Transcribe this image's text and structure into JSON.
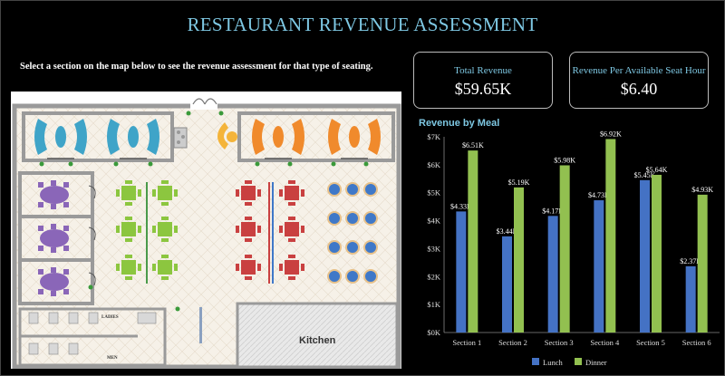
{
  "title": "RESTAURANT REVENUE ASSESSMENT",
  "instruction": "Select a section on the map below to see the revenue assessment for that type of seating.",
  "kpis": {
    "total_revenue": {
      "label": "Total Revenue",
      "value": "$59.65K"
    },
    "revpash": {
      "label": "Revenue Per Available Seat Hour",
      "value": "$6.40"
    }
  },
  "map": {
    "labels": {
      "ladies": "LADIES",
      "men": "MEN",
      "kitchen": "Kitchen"
    },
    "colors": {
      "booth_blue": "#3fa4c8",
      "booth_orange": "#f08a2c",
      "private_purple": "#8a66b8",
      "table_green": "#8cc63f",
      "table_red": "#c94040",
      "round_blue": "#3f78c8",
      "floor": "#f4efe6",
      "wall": "#9a9a9a"
    }
  },
  "chart_data": {
    "type": "bar",
    "title": "Revenue by Meal",
    "categories": [
      "Section 1",
      "Section 2",
      "Section 3",
      "Section 4",
      "Section 5",
      "Section 6"
    ],
    "series": [
      {
        "name": "Lunch",
        "color": "#4472c4",
        "values": [
          4.33,
          3.44,
          4.17,
          4.73,
          5.45,
          2.37
        ],
        "labels": [
          "$4.33K",
          "$3.44K",
          "$4.17K",
          "$4.73K",
          "$5.45K",
          "$2.37K"
        ]
      },
      {
        "name": "Dinner",
        "color": "#92c050",
        "values": [
          6.51,
          5.19,
          5.98,
          6.92,
          5.64,
          4.93
        ],
        "labels": [
          "$6.51K",
          "$5.19K",
          "$5.98K",
          "$6.92K",
          "$5.64K",
          "$4.93K"
        ]
      }
    ],
    "yticks": [
      "$0K",
      "$1K",
      "$2K",
      "$3K",
      "$4K",
      "$5K",
      "$6K",
      "$7K"
    ],
    "ylim": [
      0,
      7
    ],
    "legend_position": "bottom",
    "grid": false
  }
}
